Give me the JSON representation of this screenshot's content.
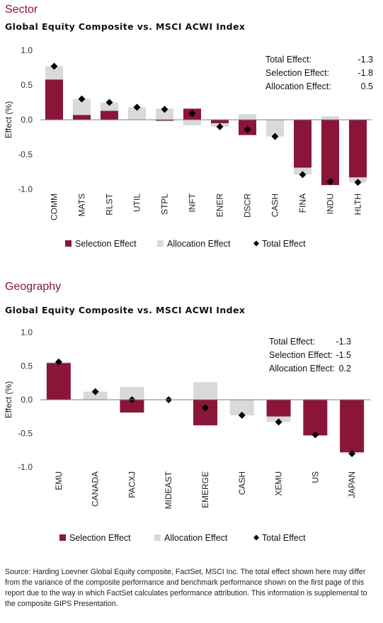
{
  "colors": {
    "selection": "#8a1538",
    "allocation": "#d9d9d9",
    "total": "#000000",
    "heading": "#8a1538"
  },
  "sector": {
    "heading": "Sector",
    "title": "Global Equity Composite vs. MSCI ACWI Index"
  },
  "geography": {
    "heading": "Geography",
    "title": "Global Equity Composite vs. MSCI ACWI Index"
  },
  "source_note": "Source: Harding Loevner Global Equity composite, FactSet, MSCI Inc. The total effect shown here may differ from the variance of the composite performance and benchmark performance shown on the first page of this report due to the way in which FactSet calculates performance attribution. This information is supplemental to the composite GIPS Presentation.",
  "chart_data": [
    {
      "type": "bar",
      "title": "Global Equity Composite vs. MSCI ACWI Index",
      "ylabel": "Effect (%)",
      "ylim": [
        -1.0,
        1.0
      ],
      "yticks": [
        "1.0",
        "0.5",
        "0.0",
        "-0.5",
        "-1.0"
      ],
      "grid": false,
      "categories": [
        "COMM",
        "MATS",
        "RLST",
        "UTIL",
        "STPL",
        "INFT",
        "ENER",
        "DSCR",
        "CASH",
        "FINA",
        "INDU",
        "HLTH"
      ],
      "series": [
        {
          "name": "Selection Effect",
          "values": [
            0.58,
            0.07,
            0.13,
            0.0,
            -0.01,
            0.16,
            -0.05,
            -0.22,
            0.0,
            -0.69,
            -0.94,
            -0.83
          ]
        },
        {
          "name": "Allocation Effect",
          "values": [
            0.19,
            0.23,
            0.12,
            0.18,
            0.16,
            -0.08,
            -0.05,
            0.08,
            -0.24,
            -0.1,
            0.05,
            -0.07
          ]
        },
        {
          "name": "Total Effect",
          "values": [
            0.77,
            0.3,
            0.25,
            0.18,
            0.15,
            0.09,
            -0.1,
            -0.14,
            -0.24,
            -0.79,
            -0.89,
            -0.9
          ]
        }
      ],
      "legend": [
        "Selection Effect",
        "Allocation Effect",
        "Total Effect"
      ],
      "legend_position": "bottom",
      "summary": [
        {
          "label": "Total Effect:",
          "value": "-1.3"
        },
        {
          "label": "Selection Effect:",
          "value": "-1.8"
        },
        {
          "label": "Allocation Effect:",
          "value": "0.5"
        }
      ]
    },
    {
      "type": "bar",
      "title": "Global Equity Composite vs. MSCI ACWI Index",
      "ylabel": "Effect (%)",
      "ylim": [
        -1.0,
        1.0
      ],
      "yticks": [
        "1.0",
        "0.5",
        "0.0",
        "-0.5",
        "-1.0"
      ],
      "grid": false,
      "categories": [
        "EMU",
        "CANADA",
        "PACXJ",
        "MIDEAST",
        "EMERGE",
        "CASH",
        "XEMU",
        "US",
        "JAPAN"
      ],
      "series": [
        {
          "name": "Selection Effect",
          "values": [
            0.55,
            0.0,
            -0.19,
            0.0,
            -0.38,
            0.0,
            -0.25,
            -0.53,
            -0.78
          ]
        },
        {
          "name": "Allocation Effect",
          "values": [
            0.01,
            0.12,
            0.19,
            0.0,
            0.26,
            -0.23,
            -0.08,
            0.01,
            -0.02
          ]
        },
        {
          "name": "Total Effect",
          "values": [
            0.56,
            0.12,
            0.0,
            0.0,
            -0.12,
            -0.23,
            -0.33,
            -0.52,
            -0.8
          ]
        }
      ],
      "legend": [
        "Selection Effect",
        "Allocation Effect",
        "Total Effect"
      ],
      "legend_position": "bottom",
      "summary": [
        {
          "label": "Total Effect:",
          "value": "-1.3"
        },
        {
          "label": "Selection Effect:",
          "value": "-1.5"
        },
        {
          "label": "Allocation Effect:",
          "value": "0.2"
        }
      ]
    }
  ]
}
